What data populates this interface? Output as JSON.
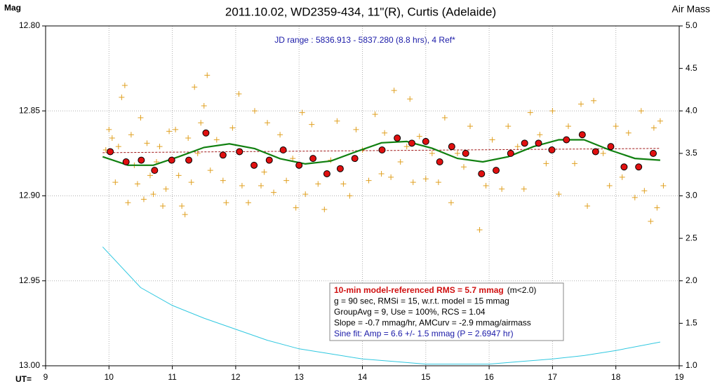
{
  "chart_data": {
    "type": "scatter",
    "title": "2011.10.02, WD2359-434, 11\"(R), Curtis (Adelaide)",
    "subtitle": "JD range : 5836.913 - 5837.280 (8.8 hrs), 4 Ref*",
    "y_label": "Mag",
    "y2_label": "Air Mass",
    "x_label": "UT=",
    "xlim": [
      9,
      19
    ],
    "xticks": [
      9,
      10,
      11,
      12,
      13,
      14,
      15,
      16,
      17,
      18,
      19
    ],
    "ylim": [
      12.8,
      13.0
    ],
    "y_inverted": true,
    "yticks": [
      {
        "value": 12.8,
        "label": "12.80"
      },
      12.85,
      {
        "value": 12.9,
        "label": "12.90"
      },
      12.95,
      {
        "value": 13.0,
        "label": "13.00"
      }
    ],
    "y2lim": [
      1.0,
      5.0
    ],
    "y2ticks": [
      {
        "value": 1.0,
        "label": "1.0"
      },
      1.5,
      {
        "value": 2.0,
        "label": "2.0"
      },
      2.5,
      {
        "value": 3.0,
        "label": "3.0"
      },
      3.5,
      {
        "value": 4.0,
        "label": "4.0"
      },
      4.5,
      {
        "value": 5.0,
        "label": "5.0"
      }
    ],
    "grid": true,
    "info_box": {
      "lines": [
        [
          "10-min model-referenced RMS = 5.7 mmag",
          "(m<2.0)"
        ],
        [
          "g = 90 sec, RMSi = 15, w.r.t. model = 15 mmag"
        ],
        [
          "GroupAvg  = 9, Use = 100%, RCS = 1.04"
        ],
        [
          "Slope = -0.7 mmag/hr, AMCurv  = -2.9 mmag/airmass"
        ],
        [
          "Sine fit: Amp = 6.6 +/- 1.5 mmag (P = 2.6947  hr)"
        ]
      ],
      "colors": [
        [
          "#d01010",
          "#000000"
        ],
        [
          "#000000"
        ],
        [
          "#000000"
        ],
        [
          "#000000"
        ],
        [
          "#1a1aa8"
        ]
      ]
    },
    "series": [
      {
        "type": "scatter",
        "marker": "cross",
        "color": "#e0a020",
        "x": [
          9.95,
          10.0,
          10.05,
          10.1,
          10.15,
          10.2,
          10.25,
          10.3,
          10.35,
          10.4,
          10.45,
          10.5,
          10.55,
          10.6,
          10.65,
          10.7,
          10.75,
          10.8,
          10.85,
          10.9,
          10.95,
          11.05,
          11.1,
          11.15,
          11.2,
          11.25,
          11.3,
          11.35,
          11.4,
          11.45,
          11.5,
          11.55,
          11.6,
          11.7,
          11.8,
          11.85,
          11.95,
          12.05,
          12.1,
          12.2,
          12.3,
          12.4,
          12.45,
          12.5,
          12.6,
          12.7,
          12.8,
          12.9,
          12.95,
          13.05,
          13.1,
          13.2,
          13.3,
          13.4,
          13.5,
          13.6,
          13.7,
          13.8,
          13.9,
          14.0,
          14.1,
          14.2,
          14.3,
          14.35,
          14.45,
          14.5,
          14.6,
          14.7,
          14.75,
          14.8,
          14.9,
          15.0,
          15.1,
          15.2,
          15.3,
          15.4,
          15.5,
          15.6,
          15.7,
          15.85,
          15.95,
          16.05,
          16.2,
          16.3,
          16.45,
          16.55,
          16.65,
          16.8,
          16.9,
          17.0,
          17.1,
          17.25,
          17.35,
          17.45,
          17.55,
          17.65,
          17.8,
          17.9,
          18.0,
          18.1,
          18.2,
          18.3,
          18.4,
          18.45,
          18.55,
          18.6,
          18.65,
          18.7,
          18.75
        ],
        "values": [
          12.873,
          12.861,
          12.866,
          12.892,
          12.871,
          12.842,
          12.835,
          12.904,
          12.864,
          12.882,
          12.893,
          12.854,
          12.902,
          12.869,
          12.888,
          12.899,
          12.88,
          12.871,
          12.906,
          12.896,
          12.862,
          12.861,
          12.888,
          12.906,
          12.911,
          12.866,
          12.892,
          12.836,
          12.875,
          12.857,
          12.847,
          12.829,
          12.885,
          12.867,
          12.891,
          12.904,
          12.86,
          12.84,
          12.894,
          12.904,
          12.85,
          12.894,
          12.886,
          12.857,
          12.898,
          12.864,
          12.891,
          12.878,
          12.907,
          12.851,
          12.899,
          12.858,
          12.893,
          12.908,
          12.879,
          12.856,
          12.893,
          12.9,
          12.861,
          12.873,
          12.891,
          12.852,
          12.887,
          12.863,
          12.889,
          12.838,
          12.88,
          12.871,
          12.843,
          12.892,
          12.865,
          12.89,
          12.875,
          12.892,
          12.854,
          12.904,
          12.875,
          12.883,
          12.859,
          12.92,
          12.894,
          12.867,
          12.896,
          12.859,
          12.871,
          12.896,
          12.851,
          12.864,
          12.881,
          12.85,
          12.899,
          12.859,
          12.881,
          12.846,
          12.906,
          12.844,
          12.875,
          12.894,
          12.859,
          12.889,
          12.863,
          12.901,
          12.85,
          12.897,
          12.915,
          12.86,
          12.907,
          12.856,
          12.894
        ]
      },
      {
        "type": "line",
        "color": "#a01818",
        "dash": true,
        "width": 1,
        "x": [
          9.9,
          18.7
        ],
        "values": [
          12.8746,
          12.8721
        ]
      },
      {
        "type": "line",
        "color": "#108010",
        "width": 2.2,
        "x": [
          9.9,
          10.3,
          10.7,
          11.1,
          11.5,
          11.9,
          12.3,
          12.7,
          13.1,
          13.5,
          13.9,
          14.3,
          14.7,
          15.1,
          15.5,
          15.9,
          16.3,
          16.7,
          17.1,
          17.5,
          17.9,
          18.3,
          18.7
        ],
        "values": [
          12.877,
          12.882,
          12.882,
          12.877,
          12.8715,
          12.8694,
          12.8722,
          12.8781,
          12.8812,
          12.8795,
          12.874,
          12.8688,
          12.868,
          12.872,
          12.878,
          12.88,
          12.877,
          12.871,
          12.867,
          12.867,
          12.873,
          12.878,
          12.879
        ]
      },
      {
        "type": "scatter",
        "marker": "circle",
        "color": "#e01010",
        "x": [
          10.02,
          10.27,
          10.51,
          10.72,
          10.99,
          11.26,
          11.53,
          11.8,
          12.06,
          12.29,
          12.53,
          12.75,
          13.0,
          13.22,
          13.44,
          13.65,
          13.88,
          14.31,
          14.55,
          14.78,
          15.0,
          15.22,
          15.41,
          15.63,
          15.88,
          16.11,
          16.34,
          16.56,
          16.78,
          16.99,
          17.22,
          17.47,
          17.68,
          17.92,
          18.13,
          18.36,
          18.59
        ],
        "values": [
          12.874,
          12.88,
          12.879,
          12.885,
          12.879,
          12.879,
          12.863,
          12.876,
          12.874,
          12.882,
          12.879,
          12.873,
          12.882,
          12.878,
          12.887,
          12.884,
          12.878,
          12.873,
          12.866,
          12.869,
          12.868,
          12.88,
          12.871,
          12.875,
          12.887,
          12.885,
          12.875,
          12.869,
          12.869,
          12.873,
          12.867,
          12.864,
          12.874,
          12.871,
          12.883,
          12.883,
          12.875
        ]
      },
      {
        "type": "line",
        "axis": "y2",
        "color": "#30c8e0",
        "width": 1,
        "x": [
          9.9,
          10.5,
          11,
          11.5,
          12,
          12.5,
          13,
          13.5,
          14,
          14.5,
          15,
          15.5,
          16,
          16.5,
          17,
          17.5,
          18,
          18.7
        ],
        "values": [
          2.4,
          1.92,
          1.71,
          1.56,
          1.43,
          1.3,
          1.2,
          1.14,
          1.08,
          1.05,
          1.02,
          1.02,
          1.02,
          1.05,
          1.08,
          1.12,
          1.18,
          1.28
        ]
      }
    ]
  }
}
